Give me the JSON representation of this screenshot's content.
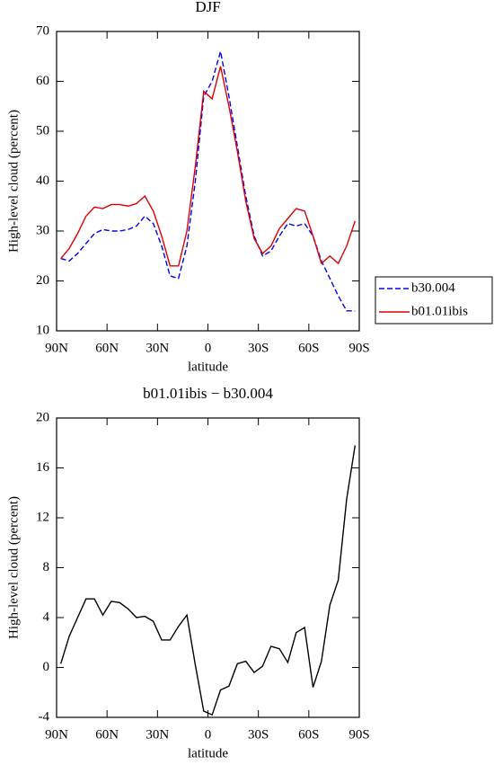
{
  "chart_data": [
    {
      "type": "line",
      "title": "DJF",
      "xlabel": "latitude",
      "ylabel": "High-level cloud (percent)",
      "x": [
        87.5,
        82.5,
        77.5,
        72.5,
        67.5,
        62.5,
        57.5,
        52.5,
        47.5,
        42.5,
        37.5,
        32.5,
        27.5,
        22.5,
        17.5,
        12.5,
        7.5,
        2.5,
        -2.5,
        -7.5,
        -12.5,
        -17.5,
        -22.5,
        -27.5,
        -32.5,
        -37.5,
        -42.5,
        -47.5,
        -52.5,
        -57.5,
        -62.5,
        -67.5,
        -72.5,
        -77.5,
        -82.5,
        -87.5
      ],
      "series": [
        {
          "name": "b30.004",
          "color": "#0000ff",
          "dash": true,
          "values": [
            24.5,
            24,
            25.5,
            27.5,
            29.5,
            30.3,
            30,
            30,
            30.3,
            31,
            33,
            31.5,
            27,
            21,
            20.5,
            27,
            40,
            57,
            60,
            66,
            57,
            47,
            37,
            29,
            25,
            26,
            29,
            31.5,
            31,
            31.5,
            29,
            24,
            20.5,
            17,
            14,
            14
          ]
        },
        {
          "name": "b01.01ibis",
          "color": "#e00000",
          "dash": false,
          "values": [
            24.5,
            26.5,
            29.5,
            33,
            34.8,
            34.5,
            35.3,
            35.3,
            35,
            35.5,
            37,
            34,
            29,
            23,
            23,
            30,
            43,
            58,
            56.5,
            63,
            55,
            46,
            36,
            28.5,
            25.5,
            27,
            30.5,
            32.5,
            34.5,
            34,
            29,
            23.5,
            25,
            23.5,
            27,
            32
          ]
        }
      ],
      "xlim": [
        90,
        -90
      ],
      "xticks": [
        {
          "value": 90,
          "label": "90N"
        },
        {
          "value": 60,
          "label": "60N"
        },
        {
          "value": 30,
          "label": "30N"
        },
        0,
        {
          "value": -30,
          "label": "30S"
        },
        {
          "value": -60,
          "label": "60S"
        },
        {
          "value": -90,
          "label": "90S"
        }
      ],
      "ylim": [
        10,
        70
      ],
      "yticks": [
        10,
        20,
        30,
        40,
        50,
        60,
        70
      ],
      "legend": "right"
    },
    {
      "type": "line",
      "title": "b01.01ibis − b30.004",
      "xlabel": "latitude",
      "ylabel": "High-level cloud (percent)",
      "x": [
        87.5,
        82.5,
        77.5,
        72.5,
        67.5,
        62.5,
        57.5,
        52.5,
        47.5,
        42.5,
        37.5,
        32.5,
        27.5,
        22.5,
        17.5,
        12.5,
        7.5,
        2.5,
        -2.5,
        -7.5,
        -12.5,
        -17.5,
        -22.5,
        -27.5,
        -32.5,
        -37.5,
        -42.5,
        -47.5,
        -52.5,
        -57.5,
        -62.5,
        -67.5,
        -72.5,
        -77.5,
        -82.5,
        -87.5
      ],
      "series": [
        {
          "color": "#000000",
          "dash": false,
          "values": [
            0.3,
            2.5,
            4,
            5.5,
            5.5,
            4.2,
            5.3,
            5.2,
            4.7,
            4,
            4.1,
            3.7,
            2.2,
            2.2,
            3.3,
            4.2,
            0.2,
            -3.5,
            -3.8,
            -1.8,
            -1.5,
            0.3,
            0.5,
            -0.4,
            0.1,
            1.7,
            1.5,
            0.4,
            2.8,
            3.2,
            -1.6,
            0.5,
            5,
            7,
            13.5,
            17.8
          ]
        }
      ],
      "xlim": [
        90,
        -90
      ],
      "xticks": [
        {
          "value": 90,
          "label": "90N"
        },
        {
          "value": 60,
          "label": "60N"
        },
        {
          "value": 30,
          "label": "30N"
        },
        0,
        {
          "value": -30,
          "label": "30S"
        },
        {
          "value": -60,
          "label": "60S"
        },
        {
          "value": -90,
          "label": "90S"
        }
      ],
      "ylim": [
        -4,
        20
      ],
      "yticks": [
        -4,
        0,
        4,
        8,
        12,
        16,
        20
      ]
    }
  ]
}
